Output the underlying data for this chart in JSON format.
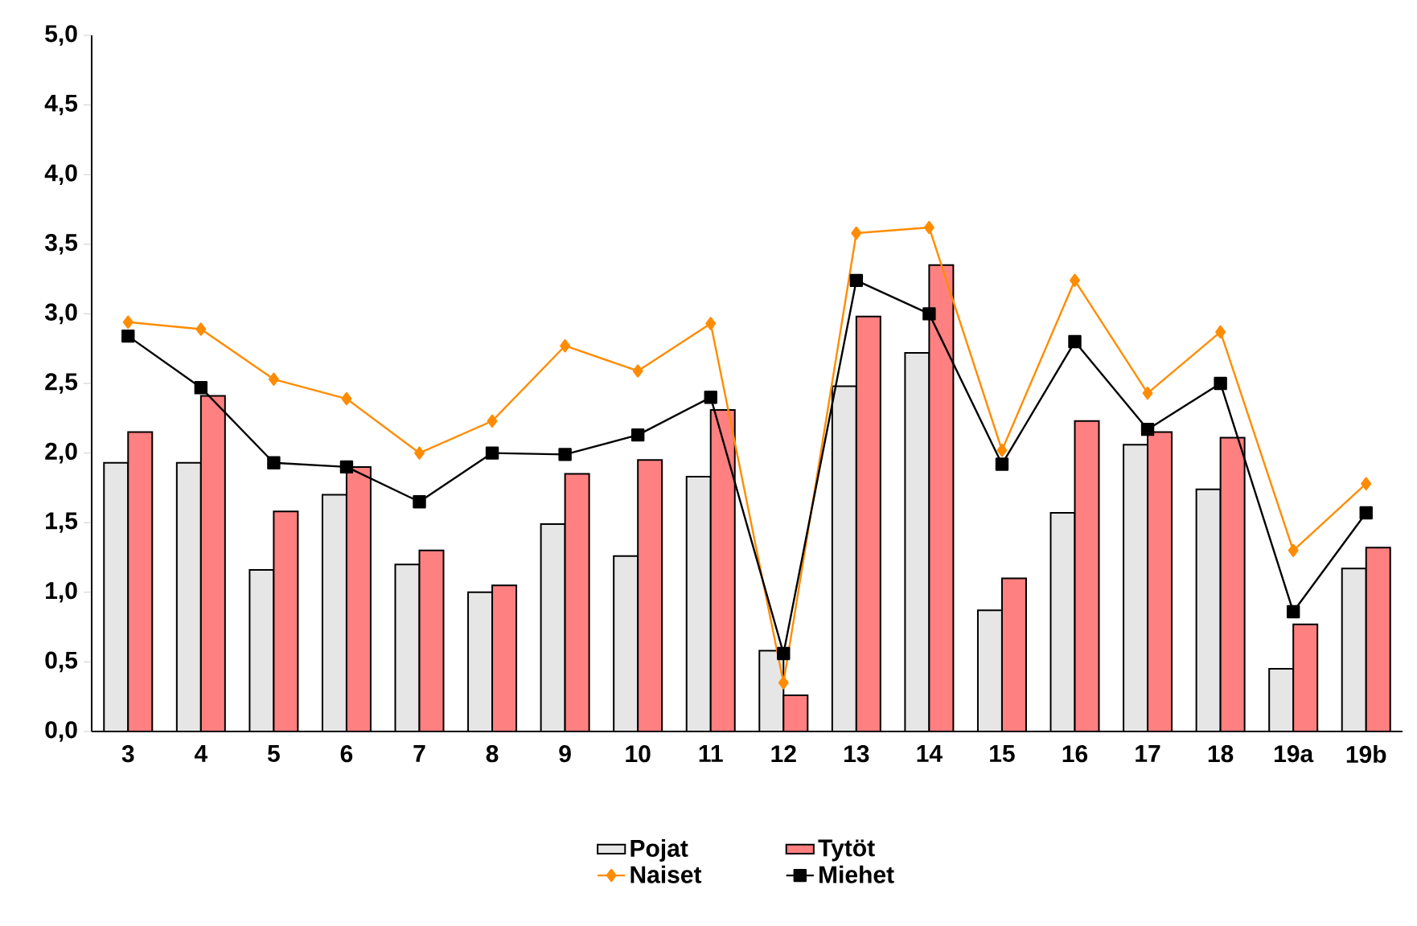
{
  "chart_data": {
    "type": "bar",
    "categories": [
      "3",
      "4",
      "5",
      "6",
      "7",
      "8",
      "9",
      "10",
      "11",
      "12",
      "13",
      "14",
      "15",
      "16",
      "17",
      "18",
      "19a",
      "19b"
    ],
    "series": [
      {
        "name": "Pojat",
        "color": "#e6e6e6",
        "values": [
          1.93,
          1.93,
          1.16,
          1.7,
          1.2,
          1.0,
          1.49,
          1.26,
          1.83,
          0.58,
          2.48,
          2.72,
          0.87,
          1.57,
          2.06,
          1.74,
          0.45,
          1.17
        ]
      },
      {
        "name": "Tytöt",
        "color": "#ff8080",
        "values": [
          2.15,
          2.41,
          1.58,
          1.9,
          1.3,
          1.05,
          1.85,
          1.95,
          2.31,
          0.26,
          2.98,
          3.35,
          1.1,
          2.23,
          2.15,
          2.11,
          0.77,
          1.32
        ]
      },
      {
        "name": "Naiset",
        "type": "line",
        "color": "#ff8c00",
        "marker": "diamond",
        "values": [
          2.94,
          2.89,
          2.53,
          2.39,
          2.0,
          2.23,
          2.77,
          2.59,
          2.93,
          0.35,
          3.58,
          3.62,
          2.02,
          3.24,
          2.43,
          2.87,
          1.3,
          1.78
        ]
      },
      {
        "name": "Miehet",
        "type": "line",
        "color": "#000000",
        "marker": "square",
        "values": [
          2.84,
          2.47,
          1.93,
          1.9,
          1.65,
          2.0,
          1.99,
          2.13,
          2.4,
          0.56,
          3.24,
          3.0,
          1.92,
          2.8,
          2.17,
          2.5,
          0.86,
          1.57
        ]
      }
    ],
    "ylim": [
      0,
      5
    ],
    "yticks": [
      {
        "value": 0,
        "label": "0,0"
      },
      {
        "value": 0.5,
        "label": "0,5"
      },
      {
        "value": 1,
        "label": "1,0"
      },
      {
        "value": 1.5,
        "label": "1,5"
      },
      {
        "value": 2,
        "label": "2,0"
      },
      {
        "value": 2.5,
        "label": "2,5"
      },
      {
        "value": 3,
        "label": "3,0"
      },
      {
        "value": 3.5,
        "label": "3,5"
      },
      {
        "value": 4,
        "label": "4,0"
      },
      {
        "value": 4.5,
        "label": "4,5"
      },
      {
        "value": 5,
        "label": "5,0"
      }
    ],
    "grid": false,
    "legend": "bottom"
  }
}
